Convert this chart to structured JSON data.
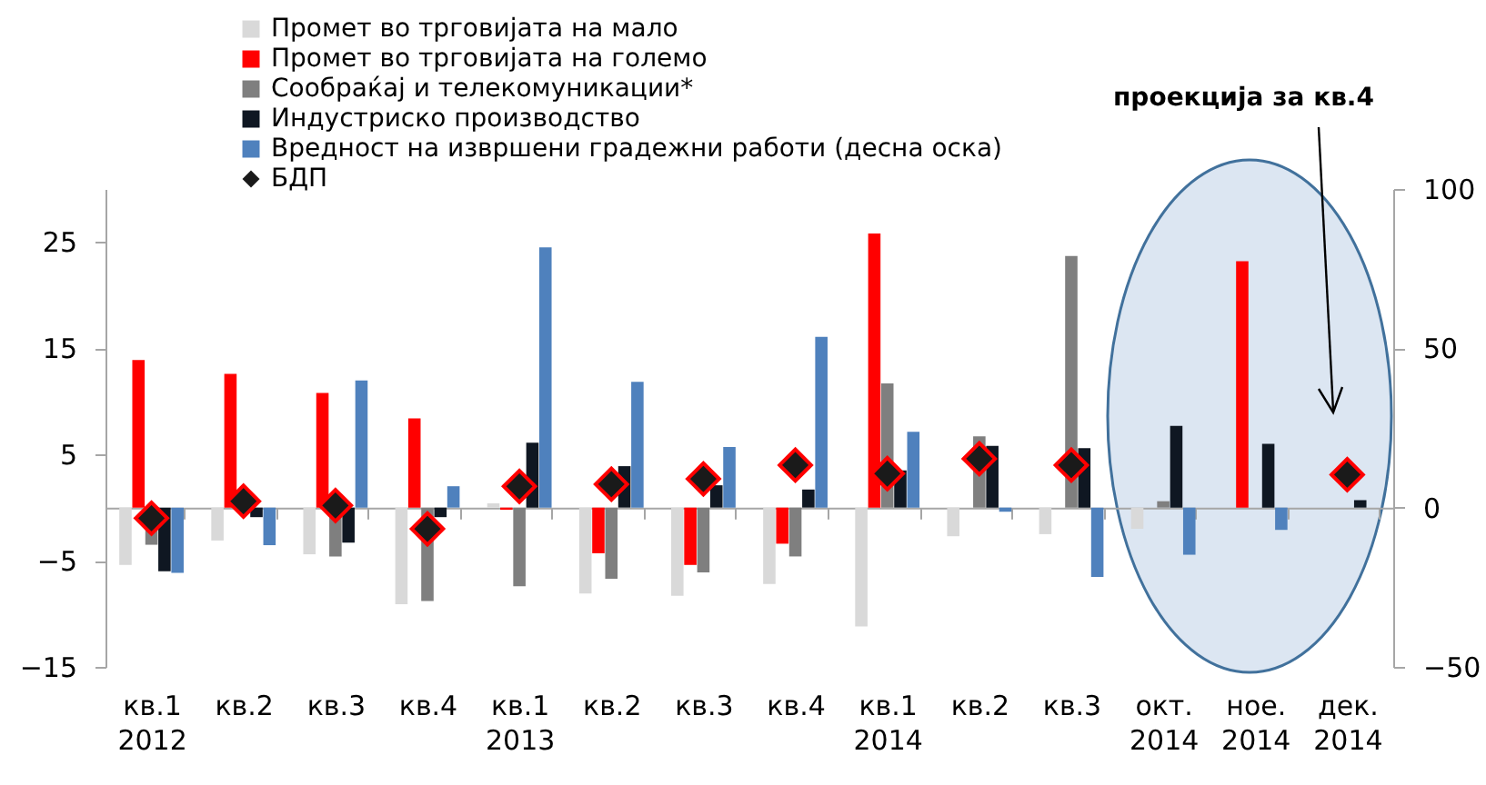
{
  "chart_data": {
    "type": "bar",
    "categories": [
      "кв.1\n2012",
      "кв.2",
      "кв.3",
      "кв.4",
      "кв.1\n2013",
      "кв.2",
      "кв.3",
      "кв.4",
      "кв.1\n2014",
      "кв.2",
      "кв.3",
      "окт.\n2014",
      "ное.\n2014",
      "дек.\n2014"
    ],
    "series": [
      {
        "name": "Промет во трговијата на мало",
        "color": "#d9d9d9",
        "values": [
          -5.4,
          -3.1,
          -4.4,
          -9.1,
          0.4,
          -8.1,
          -8.3,
          -7.2,
          -11.2,
          -2.7,
          -2.5,
          -2.0,
          0,
          null
        ]
      },
      {
        "name": "Промет во трговијата на големо",
        "color": "#ff0000",
        "values": [
          13.9,
          12.6,
          10.8,
          8.4,
          -0.2,
          -4.3,
          -5.4,
          -3.4,
          25.8,
          null,
          null,
          null,
          23.2,
          null
        ]
      },
      {
        "name": "Сообраќај и телекомуникации*",
        "color": "#7f7f7f",
        "values": [
          -3.5,
          0,
          -4.6,
          -8.8,
          -7.4,
          -6.7,
          -6.1,
          -4.6,
          11.7,
          6.7,
          23.7,
          0.6,
          0,
          null
        ]
      },
      {
        "name": "Индустриско производство",
        "color": "#0f1722",
        "values": [
          -6.0,
          -0.9,
          -3.3,
          -0.9,
          6.1,
          3.9,
          2.1,
          1.7,
          3.5,
          5.8,
          5.6,
          7.7,
          6.0,
          0.7
        ]
      },
      {
        "name": "Вредност на извршени градежни работи (десна оска)",
        "color": "#4f81bd",
        "axis": "y2",
        "values": [
          -20.5,
          -11.8,
          39.9,
          6.7,
          81.7,
          39.5,
          19,
          53.6,
          23.8,
          -1.3,
          -21.8,
          -14.8,
          -7,
          null
        ]
      },
      {
        "name": "БДП",
        "type": "scatter",
        "color": "#1a1a1a",
        "values": [
          -1.0,
          0.6,
          0.2,
          -2.0,
          2.0,
          2.2,
          2.7,
          4.0,
          3.2,
          4.6,
          4.0,
          null,
          null,
          3.1
        ]
      }
    ],
    "ylim": [
      -15,
      30
    ],
    "yticks": [
      -15,
      -5,
      5,
      15,
      25
    ],
    "y2lim": [
      -50,
      100
    ],
    "y2ticks": [
      -50,
      0,
      50,
      100
    ],
    "legend": "top left",
    "marker": "diamond",
    "annotations": [
      "проекција за кв.4"
    ]
  }
}
